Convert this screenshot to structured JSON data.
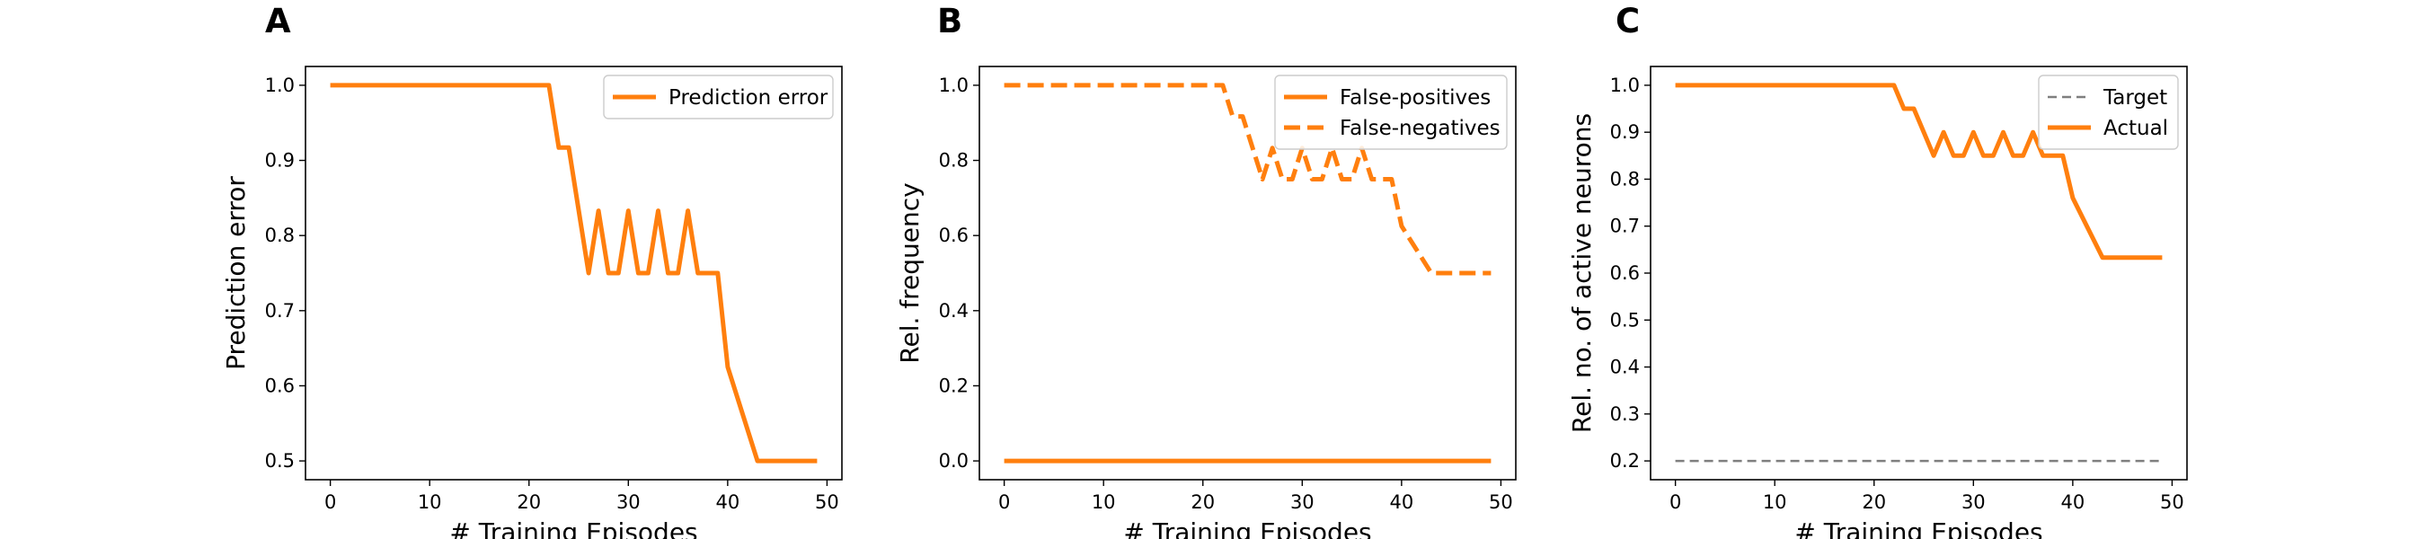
{
  "chart_data": [
    {
      "panel": "A",
      "type": "line",
      "xlabel": "# Training Episodes",
      "ylabel": "Prediction error",
      "xlim": [
        -2.5,
        51.5
      ],
      "ylim": [
        0.475,
        1.025
      ],
      "xticks": [
        0,
        10,
        20,
        30,
        40,
        50
      ],
      "xtick_labels": [
        "0",
        "10",
        "20",
        "30",
        "40",
        "50"
      ],
      "yticks": [
        0.5,
        0.6,
        0.7,
        0.8,
        0.9,
        1.0
      ],
      "ytick_labels": [
        "0.5",
        "0.6",
        "0.7",
        "0.8",
        "0.9",
        "1.0"
      ],
      "grid": false,
      "legend_position": "upper-right",
      "series": [
        {
          "name": "Prediction error",
          "color": "#ff7f0e",
          "style": "solid",
          "x": [
            0,
            22,
            23,
            24,
            26,
            27,
            28,
            29,
            30,
            31,
            32,
            33,
            34,
            35,
            36,
            37,
            38,
            39,
            40,
            43,
            49
          ],
          "y": [
            1.0,
            1.0,
            0.917,
            0.917,
            0.75,
            0.833,
            0.75,
            0.75,
            0.833,
            0.75,
            0.75,
            0.833,
            0.75,
            0.75,
            0.833,
            0.75,
            0.75,
            0.75,
            0.625,
            0.5,
            0.5
          ]
        }
      ]
    },
    {
      "panel": "B",
      "type": "line",
      "xlabel": "# Training Episodes",
      "ylabel": "Rel. frequency",
      "xlim": [
        -2.5,
        51.5
      ],
      "ylim": [
        -0.05,
        1.05
      ],
      "xticks": [
        0,
        10,
        20,
        30,
        40,
        50
      ],
      "xtick_labels": [
        "0",
        "10",
        "20",
        "30",
        "40",
        "50"
      ],
      "yticks": [
        0.0,
        0.2,
        0.4,
        0.6,
        0.8,
        1.0
      ],
      "ytick_labels": [
        "0.0",
        "0.2",
        "0.4",
        "0.6",
        "0.8",
        "1.0"
      ],
      "grid": false,
      "legend_position": "upper-right",
      "series": [
        {
          "name": "False-positives",
          "color": "#ff7f0e",
          "style": "solid",
          "x": [
            0,
            49
          ],
          "y": [
            0.0,
            0.0
          ]
        },
        {
          "name": "False-negatives",
          "color": "#ff7f0e",
          "style": "dashed",
          "x": [
            0,
            22,
            23,
            24,
            26,
            27,
            28,
            29,
            30,
            31,
            32,
            33,
            34,
            35,
            36,
            37,
            38,
            39,
            40,
            43,
            49
          ],
          "y": [
            1.0,
            1.0,
            0.917,
            0.917,
            0.75,
            0.833,
            0.75,
            0.75,
            0.833,
            0.75,
            0.75,
            0.833,
            0.75,
            0.75,
            0.833,
            0.75,
            0.75,
            0.75,
            0.625,
            0.5,
            0.5
          ]
        }
      ]
    },
    {
      "panel": "C",
      "type": "line",
      "xlabel": "# Training Episodes",
      "ylabel": "Rel. no. of active neurons",
      "xlim": [
        -2.5,
        51.5
      ],
      "ylim": [
        0.16,
        1.04
      ],
      "xticks": [
        0,
        10,
        20,
        30,
        40,
        50
      ],
      "xtick_labels": [
        "0",
        "10",
        "20",
        "30",
        "40",
        "50"
      ],
      "yticks": [
        0.2,
        0.3,
        0.4,
        0.5,
        0.6,
        0.7,
        0.8,
        0.9,
        1.0
      ],
      "ytick_labels": [
        "0.2",
        "0.3",
        "0.4",
        "0.5",
        "0.6",
        "0.7",
        "0.8",
        "0.9",
        "1.0"
      ],
      "grid": false,
      "legend_position": "upper-right",
      "series": [
        {
          "name": "Target",
          "color": "#7f7f7f",
          "style": "dashed",
          "x": [
            0,
            49
          ],
          "y": [
            0.2,
            0.2
          ]
        },
        {
          "name": "Actual",
          "color": "#ff7f0e",
          "style": "solid",
          "x": [
            0,
            22,
            23,
            24,
            26,
            27,
            28,
            29,
            30,
            31,
            32,
            33,
            34,
            35,
            36,
            37,
            38,
            39,
            40,
            43,
            49
          ],
          "y": [
            1.0,
            1.0,
            0.95,
            0.95,
            0.85,
            0.9,
            0.85,
            0.85,
            0.9,
            0.85,
            0.85,
            0.9,
            0.85,
            0.85,
            0.9,
            0.85,
            0.85,
            0.85,
            0.76,
            0.633,
            0.633
          ]
        }
      ]
    }
  ]
}
